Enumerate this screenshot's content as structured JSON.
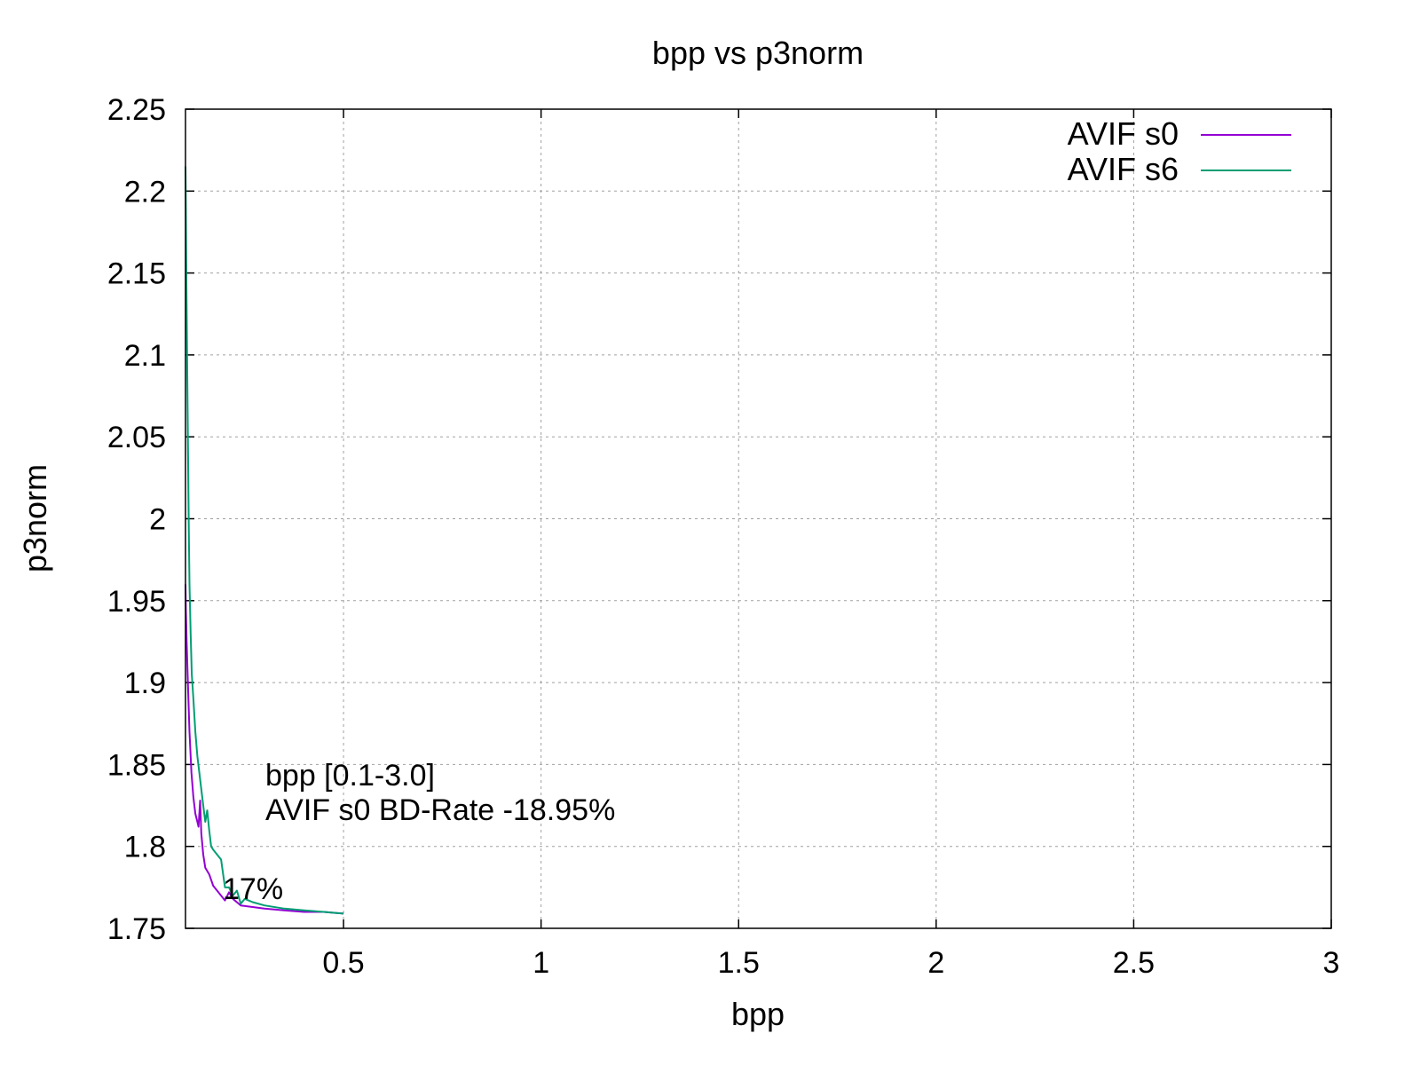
{
  "chart_data": {
    "type": "line",
    "title": "bpp vs p3norm",
    "xlabel": "bpp",
    "ylabel": "p3norm",
    "xlim": [
      0.1,
      3.0
    ],
    "ylim": [
      1.75,
      2.25
    ],
    "xticks": [
      0.5,
      1,
      1.5,
      2,
      2.5,
      3
    ],
    "xtick_labels": [
      "0.5",
      "1",
      "1.5",
      "2",
      "2.5",
      "3"
    ],
    "yticks": [
      1.75,
      1.8,
      1.85,
      1.9,
      1.95,
      2,
      2.05,
      2.1,
      2.15,
      2.2,
      2.25
    ],
    "ytick_labels": [
      "1.75",
      "1.8",
      "1.85",
      "1.9",
      "1.95",
      "2",
      "2.05",
      "2.1",
      "2.15",
      "2.2",
      "2.25"
    ],
    "grid": true,
    "legend_position": "top-right",
    "series": [
      {
        "name": "AVIF s0",
        "color": "#9400d3",
        "x": [
          0.1,
          0.101,
          0.103,
          0.106,
          0.11,
          0.115,
          0.12,
          0.125,
          0.13,
          0.133,
          0.137,
          0.14,
          0.145,
          0.15,
          0.16,
          0.17,
          0.18,
          0.19,
          0.2,
          0.21,
          0.22,
          0.24,
          0.27,
          0.3,
          0.35,
          0.4,
          0.45,
          0.5
        ],
        "y": [
          1.96,
          1.945,
          1.925,
          1.9,
          1.87,
          1.845,
          1.83,
          1.82,
          1.815,
          1.812,
          1.828,
          1.808,
          1.795,
          1.787,
          1.783,
          1.776,
          1.773,
          1.77,
          1.767,
          1.772,
          1.768,
          1.764,
          1.763,
          1.762,
          1.761,
          1.76,
          1.76,
          1.759
        ]
      },
      {
        "name": "AVIF s6",
        "color": "#009e73",
        "x": [
          0.1,
          0.101,
          0.102,
          0.104,
          0.106,
          0.108,
          0.11,
          0.113,
          0.116,
          0.12,
          0.125,
          0.13,
          0.135,
          0.14,
          0.145,
          0.15,
          0.155,
          0.16,
          0.165,
          0.17,
          0.18,
          0.19,
          0.2,
          0.21,
          0.22,
          0.23,
          0.24,
          0.25,
          0.27,
          0.3,
          0.35,
          0.4,
          0.45,
          0.5
        ],
        "y": [
          2.215,
          2.19,
          2.15,
          2.1,
          2.05,
          2.0,
          1.96,
          1.93,
          1.905,
          1.89,
          1.87,
          1.855,
          1.845,
          1.835,
          1.825,
          1.815,
          1.822,
          1.81,
          1.8,
          1.798,
          1.795,
          1.792,
          1.775,
          1.775,
          1.77,
          1.773,
          1.765,
          1.768,
          1.766,
          1.764,
          1.762,
          1.761,
          1.76,
          1.759
        ]
      }
    ],
    "annotations": [
      {
        "text": "bpp [0.1-3.0]",
        "color": "#00ee00"
      },
      {
        "text": "AVIF s0 BD-Rate -18.95%",
        "color": "#00ee00"
      },
      {
        "text": "17%",
        "color": "#000000"
      }
    ]
  }
}
